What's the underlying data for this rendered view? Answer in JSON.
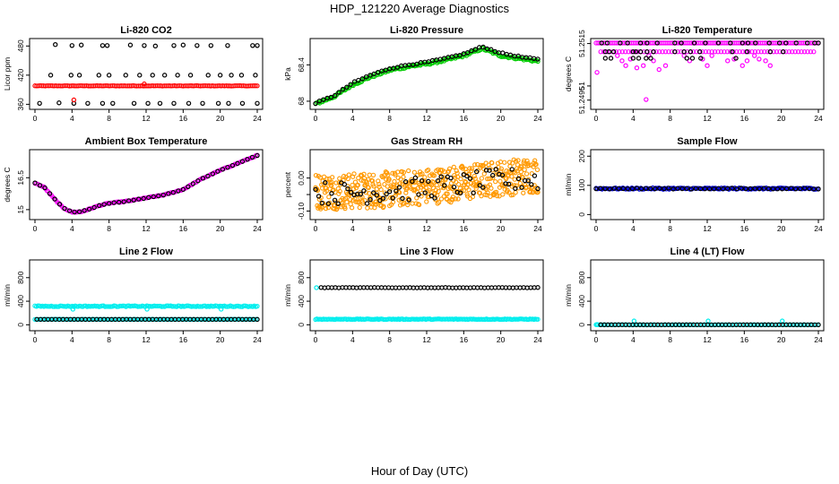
{
  "page": {
    "title": "HDP_121220  Average Diagnostics",
    "xlabel": "Hour of Day (UTC)"
  },
  "chart_data": [
    {
      "id": "co2",
      "type": "scatter",
      "title": "Li-820 CO2",
      "ylabel": "Licor ppm",
      "xlim": [
        0,
        24
      ],
      "ylim": [
        357,
        488
      ],
      "yticks": [
        360,
        420,
        480
      ],
      "xticks": [
        0,
        4,
        8,
        12,
        16,
        20,
        24
      ],
      "series": [
        {
          "name": "co2-main",
          "color": "#ff0000",
          "marker": "circle",
          "dense": true,
          "x_range": [
            0,
            24
          ],
          "n": 130,
          "y_base": 398,
          "y_jitter": 0.4,
          "trend": 0
        },
        {
          "name": "co2-high",
          "color": "#000000",
          "marker": "circle",
          "x": [
            2.2,
            4,
            5,
            7.3,
            7.8,
            10.3,
            11.8,
            13,
            15,
            16,
            17.5,
            19,
            20.8,
            23.5,
            24
          ],
          "y": [
            483,
            481,
            482,
            481,
            481,
            482,
            481,
            480,
            481,
            482,
            481,
            481,
            481,
            481,
            481
          ]
        },
        {
          "name": "co2-mid",
          "color": "#000000",
          "marker": "circle",
          "x": [
            1.7,
            3.9,
            4.8,
            6.9,
            8,
            9.8,
            11.3,
            12.7,
            14,
            15.4,
            16.8,
            18.7,
            20,
            21.2,
            22.3,
            23.8
          ],
          "y": [
            420,
            420,
            420,
            420,
            420,
            420,
            420,
            420,
            420,
            420,
            420,
            420,
            420,
            420,
            420,
            420
          ]
        },
        {
          "name": "co2-low",
          "color": "#000000",
          "marker": "circle",
          "x": [
            0.5,
            2.6,
            4.2,
            5.7,
            7.3,
            8.4,
            10.7,
            12.2,
            13.5,
            15,
            16.6,
            18.1,
            19.8,
            20.9,
            22.4,
            24
          ],
          "y": [
            362,
            363,
            362,
            362,
            362,
            362,
            362,
            362,
            362,
            362,
            362,
            362,
            362,
            362,
            362,
            362
          ]
        },
        {
          "name": "co2-outlier",
          "color": "#ff0000",
          "marker": "circle",
          "x": [
            4.2,
            11.8
          ],
          "y": [
            369,
            402
          ]
        }
      ]
    },
    {
      "id": "pressure",
      "type": "scatter",
      "title": "Li-820 Pressure",
      "ylabel": "kPa",
      "xlim": [
        0,
        24
      ],
      "ylim": [
        67.95,
        68.65
      ],
      "yticks": [
        68.0,
        68.4
      ],
      "xticks": [
        0,
        4,
        8,
        12,
        16,
        20,
        24
      ],
      "series": [
        {
          "name": "pressure-green",
          "color": "#00cc00",
          "marker": "circle",
          "dense": true,
          "curve_x": [
            0,
            2,
            4,
            6,
            8,
            10,
            12,
            14,
            16,
            18,
            20,
            22,
            24
          ],
          "curve_y": [
            67.97,
            68.05,
            68.18,
            68.27,
            68.34,
            68.38,
            68.41,
            68.45,
            68.5,
            68.58,
            68.5,
            68.47,
            68.44
          ],
          "n": 160,
          "y_jitter": 0.012
        },
        {
          "name": "pressure-black",
          "color": "#000000",
          "marker": "circle",
          "curve_x": [
            0,
            2,
            4,
            6,
            8,
            10,
            12,
            14,
            16,
            18,
            20,
            22,
            24
          ],
          "curve_y": [
            67.98,
            68.06,
            68.2,
            68.29,
            68.36,
            68.4,
            68.43,
            68.47,
            68.52,
            68.6,
            68.53,
            68.49,
            68.46
          ],
          "n": 58,
          "y_jitter": 0.006
        }
      ]
    },
    {
      "id": "temp",
      "type": "scatter",
      "title": "Li-820 Temperature",
      "ylabel": "degrees C",
      "xlim": [
        0,
        24
      ],
      "ylim": [
        51.2493,
        51.25155
      ],
      "yticks": [
        51.2495,
        51.25,
        51.2515
      ],
      "ytick_labels": [
        "51.2495",
        "51",
        "51.2515"
      ],
      "xticks": [
        0,
        4,
        8,
        12,
        16,
        20,
        24
      ],
      "series": [
        {
          "name": "temp-magenta-top",
          "color": "#ff00ff",
          "marker": "circle",
          "dense": true,
          "x_range": [
            0,
            24
          ],
          "n": 120,
          "y_base": 51.25152,
          "y_jitter": 0
        },
        {
          "name": "temp-magenta-mid",
          "color": "#ff00ff",
          "marker": "circle",
          "dense": true,
          "x_range": [
            0.5,
            23.5
          ],
          "n": 70,
          "y_base": 51.25121,
          "y_jitter": 0
        },
        {
          "name": "temp-magenta-scatter",
          "color": "#ff00ff",
          "marker": "circle",
          "x": [
            0.1,
            2.3,
            2.8,
            3.2,
            3.7,
            4.4,
            5.1,
            5.7,
            6.2,
            6.8,
            7.5,
            9.5,
            10.1,
            11.5,
            12,
            12.5,
            14.2,
            14.9,
            15.8,
            16.3,
            17.1,
            17.6,
            18.3,
            18.8,
            5.4
          ],
          "y": [
            51.25048,
            51.25107,
            51.25089,
            51.25072,
            51.25095,
            51.25064,
            51.25072,
            51.25107,
            51.25089,
            51.25058,
            51.25072,
            51.25107,
            51.25089,
            51.25095,
            51.25072,
            51.25107,
            51.25089,
            51.25095,
            51.25072,
            51.25089,
            51.25107,
            51.25095,
            51.25089,
            51.25072,
            51.24952
          ]
        },
        {
          "name": "temp-black-top",
          "color": "#000000",
          "marker": "circle",
          "x": [
            0.6,
            1.2,
            2.6,
            3.4,
            4.8,
            5.5,
            6.6,
            8.5,
            9.2,
            10.6,
            11.8,
            13.2,
            14.5,
            15.8,
            16.4,
            17.2,
            18.7,
            19.8,
            20.5,
            21.6,
            22.8,
            23.6,
            24
          ],
          "y": [
            51.25152,
            51.25152,
            51.25152,
            51.25152,
            51.25152,
            51.25152,
            51.25152,
            51.25152,
            51.25152,
            51.25152,
            51.25152,
            51.25152,
            51.25152,
            51.25152,
            51.25152,
            51.25152,
            51.25152,
            51.25152,
            51.25152,
            51.25152,
            51.25152,
            51.25152,
            51.25152
          ]
        },
        {
          "name": "temp-black-mid",
          "color": "#000000",
          "marker": "circle",
          "x": [
            1,
            1.4,
            1.9,
            4,
            4.3,
            4.8,
            5.5,
            6.2,
            8.5,
            9.5,
            10.2,
            11.2,
            14.7,
            16.3,
            18.8,
            20.2
          ],
          "y": [
            51.25121,
            51.25121,
            51.25121,
            51.25121,
            51.25121,
            51.25121,
            51.25121,
            51.25121,
            51.25121,
            51.25121,
            51.25121,
            51.25121,
            51.25121,
            51.25121,
            51.25121,
            51.25121
          ]
        },
        {
          "name": "temp-black-low",
          "color": "#000000",
          "marker": "circle",
          "x": [
            1,
            1.6,
            4,
            4.6,
            5.4,
            5.9,
            9.8,
            10.4,
            11.3,
            15.1
          ],
          "y": [
            51.25098,
            51.25098,
            51.25098,
            51.25098,
            51.25098,
            51.25098,
            51.25098,
            51.25098,
            51.25098,
            51.25098
          ]
        }
      ]
    },
    {
      "id": "ambient",
      "type": "scatter",
      "title": "Ambient Box Temperature",
      "ylabel": "degrees C",
      "xlim": [
        0,
        24
      ],
      "ylim": [
        14.7,
        17.65
      ],
      "yticks": [
        15.0,
        16.5
      ],
      "xticks": [
        0,
        4,
        8,
        12,
        16,
        20,
        24
      ],
      "series": [
        {
          "name": "ambient-magenta",
          "color": "#ff00ff",
          "marker": "circle",
          "dense": true,
          "curve_x": [
            0,
            1,
            2,
            3,
            4,
            5,
            6,
            7,
            8,
            10,
            12,
            14,
            16,
            18,
            20,
            22,
            24
          ],
          "curve_y": [
            16.25,
            16.05,
            15.55,
            15.1,
            14.88,
            14.9,
            15.05,
            15.2,
            15.3,
            15.4,
            15.55,
            15.7,
            15.95,
            16.45,
            16.85,
            17.2,
            17.55
          ],
          "n": 150,
          "y_jitter": 0.02
        },
        {
          "name": "ambient-black",
          "color": "#000000",
          "marker": "circle",
          "curve_x": [
            0,
            1,
            2,
            3,
            4,
            5,
            6,
            7,
            8,
            10,
            12,
            14,
            16,
            18,
            20,
            22,
            24
          ],
          "curve_y": [
            16.25,
            16.05,
            15.55,
            15.1,
            14.88,
            14.9,
            15.05,
            15.2,
            15.3,
            15.4,
            15.55,
            15.7,
            15.95,
            16.45,
            16.85,
            17.2,
            17.55
          ],
          "n": 46,
          "y_jitter": 0.01
        }
      ]
    },
    {
      "id": "rh",
      "type": "scatter",
      "title": "Gas Stream RH",
      "ylabel": "percent",
      "xlim": [
        0,
        24
      ],
      "ylim": [
        -0.115,
        0.075
      ],
      "yticks": [
        -0.1,
        -0.05,
        0.0
      ],
      "ytick_labels": [
        "-0.10",
        "",
        "0.00"
      ],
      "xticks": [
        0,
        4,
        8,
        12,
        16,
        20,
        24
      ],
      "series": [
        {
          "name": "rh-orange",
          "color": "#ff9900",
          "marker": "circle",
          "dense": true,
          "curve_x": [
            0,
            4,
            8,
            12,
            16,
            20,
            24
          ],
          "curve_y": [
            -0.04,
            -0.04,
            -0.035,
            -0.025,
            -0.015,
            0.0,
            0.01
          ],
          "n": 520,
          "y_jitter": 0.055
        },
        {
          "name": "rh-black",
          "color": "#000000",
          "marker": "circle",
          "curve_x": [
            0,
            4,
            8,
            12,
            16,
            20,
            24
          ],
          "curve_y": [
            -0.045,
            -0.045,
            -0.04,
            -0.03,
            -0.02,
            -0.005,
            -0.005
          ],
          "n": 70,
          "y_jitter": 0.035
        }
      ]
    },
    {
      "id": "sample",
      "type": "scatter",
      "title": "Sample Flow",
      "ylabel": "ml/min",
      "xlim": [
        0,
        24
      ],
      "ylim": [
        -5,
        210
      ],
      "yticks": [
        0,
        100,
        200
      ],
      "xticks": [
        0,
        4,
        8,
        12,
        16,
        20,
        24
      ],
      "series": [
        {
          "name": "sample-blue",
          "color": "#0000dd",
          "marker": "circle",
          "dense": true,
          "x_range": [
            0,
            24
          ],
          "n": 150,
          "y_base": 89,
          "y_jitter": 2.5,
          "trend": 0
        },
        {
          "name": "sample-black",
          "color": "#000000",
          "marker": "circle",
          "x_range": [
            0,
            24
          ],
          "n": 50,
          "y_base": 89,
          "y_jitter": 1.5,
          "trend": 0
        }
      ]
    },
    {
      "id": "line2",
      "type": "scatter",
      "title": "Line 2 Flow",
      "ylabel": "ml/min",
      "xlim": [
        0,
        24
      ],
      "ylim": [
        -40,
        1040
      ],
      "yticks": [
        0,
        400,
        800
      ],
      "xticks": [
        0,
        4,
        8,
        12,
        16,
        20,
        24
      ],
      "series": [
        {
          "name": "line2-cyan-high",
          "color": "#00eeee",
          "marker": "circle",
          "dense": true,
          "x_range": [
            0,
            24
          ],
          "n": 150,
          "y_base": 315,
          "y_jitter": 8,
          "trend": 0
        },
        {
          "name": "line2-cyan-dips",
          "color": "#00eeee",
          "marker": "circle",
          "x": [
            4.1,
            12.1,
            20.1
          ],
          "y": [
            265,
            265,
            265
          ]
        },
        {
          "name": "line2-cyan-low",
          "color": "#00eeee",
          "marker": "circle",
          "dense": true,
          "x_range": [
            0,
            24
          ],
          "n": 140,
          "y_base": 92,
          "y_jitter": 2,
          "trend": 0
        },
        {
          "name": "line2-black",
          "color": "#000000",
          "marker": "circle",
          "x_range": [
            0.2,
            24
          ],
          "n": 60,
          "y_base": 92,
          "y_jitter": 1,
          "trend": 0
        }
      ]
    },
    {
      "id": "line3",
      "type": "scatter",
      "title": "Line 3 Flow",
      "ylabel": "ml/min",
      "xlim": [
        0,
        24
      ],
      "ylim": [
        -40,
        1040
      ],
      "yticks": [
        0,
        400,
        800
      ],
      "xticks": [
        0,
        4,
        8,
        12,
        16,
        20,
        24
      ],
      "series": [
        {
          "name": "line3-cyan-low",
          "color": "#00eeee",
          "marker": "circle",
          "dense": true,
          "x_range": [
            0,
            24
          ],
          "n": 170,
          "y_base": 95,
          "y_jitter": 6,
          "trend": 0
        },
        {
          "name": "line3-cyan-high",
          "color": "#00eeee",
          "marker": "circle",
          "x": [
            0.1
          ],
          "y": [
            630
          ]
        },
        {
          "name": "line3-black",
          "color": "#000000",
          "marker": "circle",
          "x_range": [
            0.6,
            24
          ],
          "n": 62,
          "y_base": 630,
          "y_jitter": 3,
          "trend": 0
        }
      ]
    },
    {
      "id": "line4",
      "type": "scatter",
      "title": "Line 4 (LT) Flow",
      "ylabel": "ml/min",
      "xlim": [
        0,
        24
      ],
      "ylim": [
        -40,
        1040
      ],
      "yticks": [
        0,
        400,
        800
      ],
      "xticks": [
        0,
        4,
        8,
        12,
        16,
        20,
        24
      ],
      "series": [
        {
          "name": "line4-cyan",
          "color": "#00eeee",
          "marker": "circle",
          "dense": true,
          "x_range": [
            0,
            24
          ],
          "n": 120,
          "y_base": 0,
          "y_jitter": 2,
          "trend": 0
        },
        {
          "name": "line4-spikes",
          "color": "#00eeee",
          "marker": "circle",
          "x": [
            0.1,
            4.1,
            12.1,
            20.1
          ],
          "y": [
            5,
            65,
            65,
            65
          ]
        },
        {
          "name": "line4-black",
          "color": "#000000",
          "marker": "circle",
          "x_range": [
            0.5,
            24
          ],
          "n": 62,
          "y_base": 0,
          "y_jitter": 0.5,
          "trend": 0
        }
      ]
    }
  ]
}
